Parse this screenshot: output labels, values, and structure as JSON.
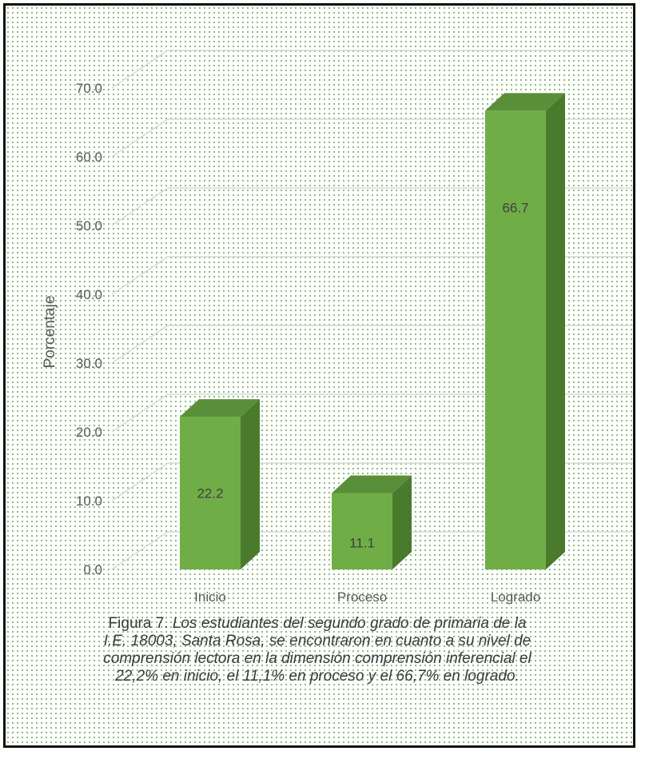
{
  "chart_data": {
    "type": "bar",
    "style": "3d-column",
    "categories": [
      "Inicio",
      "Proceso",
      "Logrado"
    ],
    "values": [
      22.2,
      11.1,
      66.7
    ],
    "data_labels": [
      "22.2",
      "11.1",
      "66.7"
    ],
    "ylabel": "Porcentaje",
    "xlabel": "",
    "ylim": [
      0,
      70
    ],
    "yticks": [
      "0.0",
      "10.0",
      "20.0",
      "30.0",
      "40.0",
      "50.0",
      "60.0",
      "70.0"
    ],
    "grid": true,
    "legend": "none",
    "colors": {
      "bar_front": "#70ad47",
      "bar_side": "#4a7a2c",
      "bar_top": "#5a8f3a",
      "grid": "#d9d9d9"
    }
  },
  "caption": {
    "prefix": "Figura 7.",
    "text": " Los estudiantes del segundo grado de primaria de la I.E. 18003, Santa Rosa, se encontraron en cuanto a su nivel de comprensión lectora en la dimensión comprensión inferencial el 22,2% en inicio, el 11,1% en proceso y el 66,7% en logrado."
  }
}
